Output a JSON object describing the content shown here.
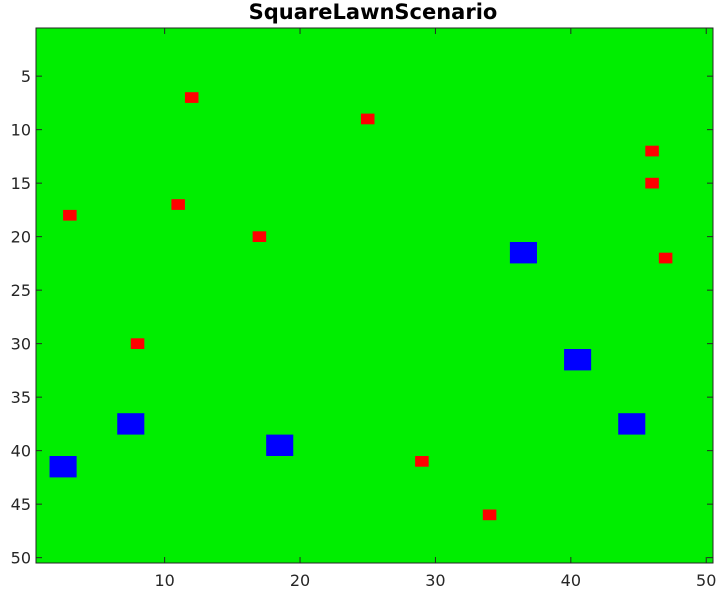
{
  "chart_data": {
    "type": "heatmap",
    "title": "SquareLawnScenario",
    "xlabel": "",
    "ylabel": "",
    "xlim": [
      0.5,
      50.5
    ],
    "ylim": [
      0.5,
      50.5
    ],
    "y_reversed": true,
    "grid": false,
    "background_color": "#00ee00",
    "xticks": [
      10,
      20,
      30,
      40,
      50
    ],
    "yticks": [
      5,
      10,
      15,
      20,
      25,
      30,
      35,
      40,
      45,
      50
    ],
    "series": [
      {
        "name": "",
        "color": "#ff0000",
        "cell_size": 1,
        "points": [
          {
            "x": 12,
            "y": 7
          },
          {
            "x": 25,
            "y": 9
          },
          {
            "x": 46,
            "y": 12
          },
          {
            "x": 46,
            "y": 15
          },
          {
            "x": 11,
            "y": 17
          },
          {
            "x": 3,
            "y": 18
          },
          {
            "x": 17,
            "y": 20
          },
          {
            "x": 47,
            "y": 22
          },
          {
            "x": 8,
            "y": 30
          },
          {
            "x": 29,
            "y": 41
          },
          {
            "x": 34,
            "y": 46
          }
        ]
      },
      {
        "name": "",
        "color": "#0000ff",
        "cell_size": 2,
        "points": [
          {
            "x": 36.5,
            "y": 21.5
          },
          {
            "x": 40.5,
            "y": 31.5
          },
          {
            "x": 44.5,
            "y": 37.5
          },
          {
            "x": 7.5,
            "y": 37.5
          },
          {
            "x": 18.5,
            "y": 39.5
          },
          {
            "x": 2.5,
            "y": 41.5
          }
        ]
      }
    ]
  }
}
